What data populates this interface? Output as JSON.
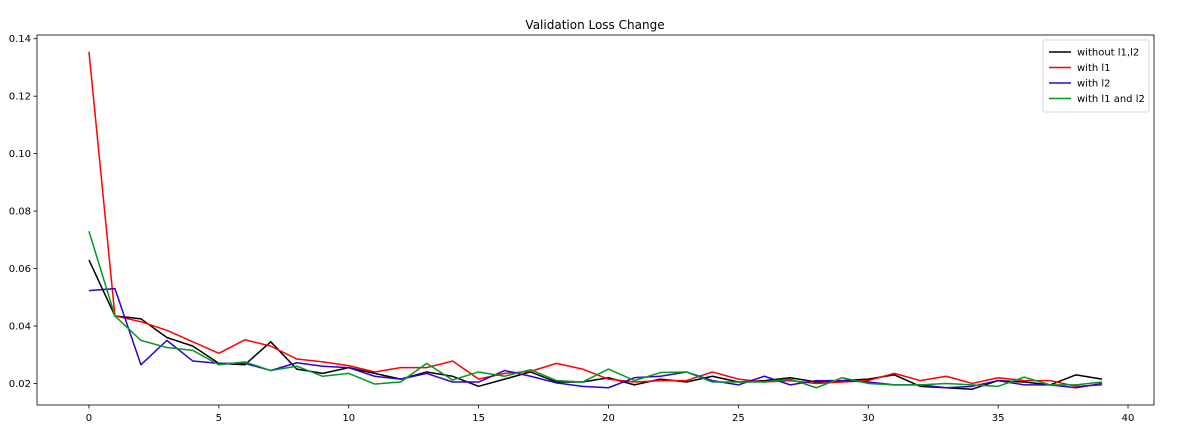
{
  "chart_data": {
    "type": "line",
    "title": "Validation Loss Change",
    "xlabel": "",
    "ylabel": "",
    "xlim": [
      -2,
      41
    ],
    "ylim": [
      0.0125,
      0.1413
    ],
    "xticks": [
      0,
      5,
      10,
      15,
      20,
      25,
      30,
      35,
      40
    ],
    "yticks": [
      0.02,
      0.04,
      0.06,
      0.08,
      0.1,
      0.12,
      0.14
    ],
    "ytick_labels": [
      "0.02",
      "0.04",
      "0.06",
      "0.08",
      "0.10",
      "0.12",
      "0.14"
    ],
    "grid": false,
    "legend_position": "top-right",
    "x": [
      0,
      1,
      2,
      3,
      4,
      5,
      6,
      7,
      8,
      9,
      10,
      11,
      12,
      13,
      14,
      15,
      16,
      17,
      18,
      19,
      20,
      21,
      22,
      23,
      24,
      25,
      26,
      27,
      28,
      29,
      30,
      31,
      32,
      33,
      34,
      35,
      36,
      37,
      38,
      39
    ],
    "series": [
      {
        "name": "without l1,l2",
        "color": "#000000",
        "values": [
          0.063,
          0.0435,
          0.0425,
          0.036,
          0.033,
          0.027,
          0.0265,
          0.0345,
          0.025,
          0.0235,
          0.0255,
          0.0235,
          0.0215,
          0.024,
          0.0225,
          0.019,
          0.0215,
          0.024,
          0.0205,
          0.0205,
          0.022,
          0.0195,
          0.0215,
          0.0205,
          0.0225,
          0.0205,
          0.021,
          0.022,
          0.0205,
          0.021,
          0.0215,
          0.023,
          0.019,
          0.0185,
          0.018,
          0.021,
          0.0205,
          0.0195,
          0.023,
          0.0215
        ]
      },
      {
        "name": "with l1",
        "color": "#ff0000",
        "values": [
          0.1355,
          0.0435,
          0.0415,
          0.0385,
          0.0345,
          0.0305,
          0.0352,
          0.033,
          0.0285,
          0.0275,
          0.0262,
          0.024,
          0.0255,
          0.0255,
          0.0278,
          0.0215,
          0.0235,
          0.0242,
          0.027,
          0.025,
          0.0215,
          0.0205,
          0.021,
          0.021,
          0.024,
          0.0215,
          0.0205,
          0.021,
          0.02,
          0.0205,
          0.021,
          0.0235,
          0.021,
          0.0225,
          0.02,
          0.022,
          0.021,
          0.021,
          0.019,
          0.0195
        ]
      },
      {
        "name": "with l2",
        "color": "#3300cc",
        "values": [
          0.0523,
          0.053,
          0.0265,
          0.035,
          0.0278,
          0.027,
          0.027,
          0.0245,
          0.0272,
          0.026,
          0.0255,
          0.0225,
          0.0215,
          0.0235,
          0.0205,
          0.0205,
          0.0245,
          0.0225,
          0.0202,
          0.019,
          0.0185,
          0.022,
          0.0225,
          0.024,
          0.021,
          0.0195,
          0.0225,
          0.0195,
          0.021,
          0.021,
          0.0205,
          0.0195,
          0.0195,
          0.0185,
          0.019,
          0.021,
          0.0195,
          0.0195,
          0.0185,
          0.02
        ]
      },
      {
        "name": "with l1 and l2",
        "color": "#009922",
        "values": [
          0.073,
          0.0435,
          0.035,
          0.0325,
          0.0315,
          0.0265,
          0.0275,
          0.0245,
          0.026,
          0.0225,
          0.0235,
          0.0198,
          0.0205,
          0.027,
          0.0212,
          0.024,
          0.0225,
          0.0248,
          0.021,
          0.0205,
          0.025,
          0.021,
          0.0238,
          0.024,
          0.0205,
          0.0205,
          0.0205,
          0.0215,
          0.0185,
          0.022,
          0.02,
          0.0195,
          0.0195,
          0.02,
          0.0195,
          0.019,
          0.0222,
          0.0195,
          0.0195,
          0.0205
        ]
      }
    ]
  }
}
